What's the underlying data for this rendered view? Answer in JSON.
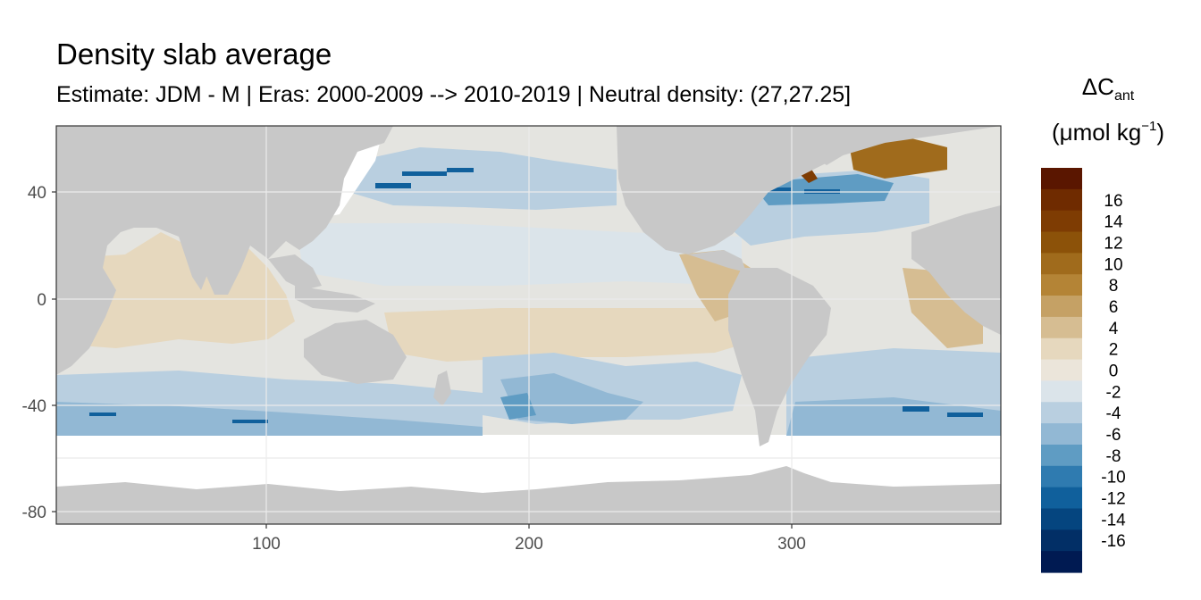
{
  "title": "Density slab average",
  "subtitle": "Estimate: JDM - M | Eras: 2000-2009 --> 2010-2019 | Neutral density: (27,27.25]",
  "legend": {
    "title_symbol": "ΔC",
    "title_subscript": "ant",
    "unit_open": "(μmol kg",
    "unit_sup": "−1",
    "unit_close": ")",
    "bins": [
      {
        "label": "",
        "color": "#5a1600"
      },
      {
        "label": "16",
        "color": "#6f2b00"
      },
      {
        "label": "14",
        "color": "#7e3c03"
      },
      {
        "label": "12",
        "color": "#8c5209"
      },
      {
        "label": "10",
        "color": "#a06b1c"
      },
      {
        "label": "8",
        "color": "#b48436"
      },
      {
        "label": "6",
        "color": "#c5a165"
      },
      {
        "label": "4",
        "color": "#d6bd92"
      },
      {
        "label": "2",
        "color": "#e6d8be"
      },
      {
        "label": "0",
        "color": "#ebe5da"
      },
      {
        "label": "-2",
        "color": "#dbe4ea"
      },
      {
        "label": "-4",
        "color": "#b9cfe0"
      },
      {
        "label": "-6",
        "color": "#92b8d4"
      },
      {
        "label": "-8",
        "color": "#5f9cc3"
      },
      {
        "label": "-10",
        "color": "#2f7bb0"
      },
      {
        "label": "-12",
        "color": "#10609c"
      },
      {
        "label": "-14",
        "color": "#05457f"
      },
      {
        "label": "-16",
        "color": "#022f66"
      },
      {
        "label": "",
        "color": "#001a52"
      }
    ]
  },
  "axes": {
    "x_ticks": [
      "100",
      "200",
      "300"
    ],
    "y_ticks": [
      "40",
      "0",
      "-40",
      "-80"
    ]
  },
  "colors": {
    "land": "#c8c8c8",
    "no_data": "#ffffff",
    "grid": "#ebebeb",
    "panel_border": "#333333"
  }
}
